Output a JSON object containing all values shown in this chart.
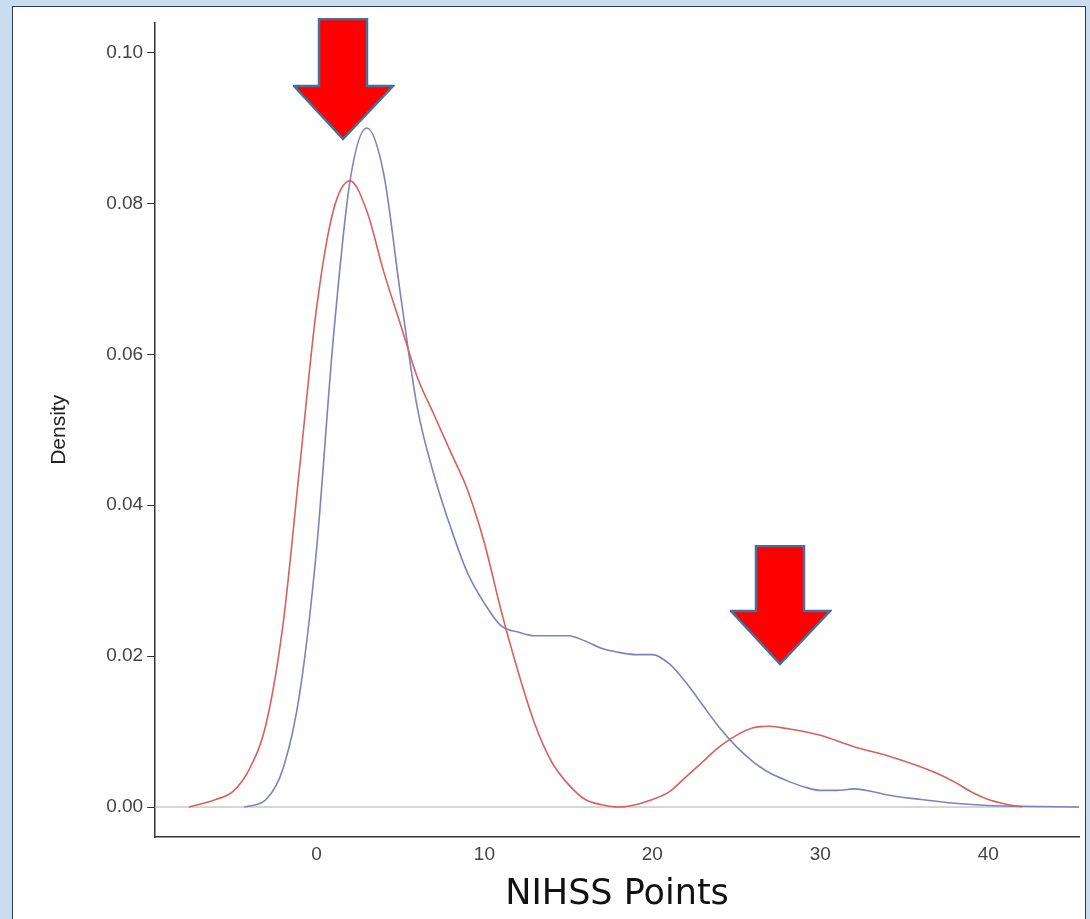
{
  "chart_data": {
    "type": "line",
    "xlabel": "NIHSS Points",
    "ylabel": "Density",
    "xlim": [
      -9.6,
      45.4
    ],
    "xticks": [
      0,
      10,
      20,
      30,
      40
    ],
    "ylim": [
      -0.004,
      0.104
    ],
    "yticks": [
      {
        "value": 0,
        "label": "0.00"
      },
      {
        "value": 0.02,
        "label": "0.02"
      },
      {
        "value": 0.04,
        "label": "0.04"
      },
      {
        "value": 0.06,
        "label": "0.06"
      },
      {
        "value": 0.08,
        "label": "0.08"
      },
      {
        "value": 0.1,
        "label": "0.10"
      }
    ],
    "grid": false,
    "legend": false,
    "marker": "none",
    "line_style": "solid",
    "ref_lines": [
      {
        "axis": "y",
        "value": 0,
        "color": "#c8c8c8"
      }
    ],
    "series": [
      {
        "color": "#d9605a",
        "x": [
          -7.6,
          -6,
          -5,
          -4,
          -3,
          -2,
          -1,
          0,
          1,
          2,
          3,
          4,
          5,
          6,
          7,
          8,
          9,
          10,
          11,
          12,
          13,
          14,
          15,
          16,
          17,
          18,
          19,
          20,
          21,
          22,
          23,
          24,
          25,
          26,
          27,
          28,
          30,
          32,
          34,
          36,
          37,
          38,
          39,
          40,
          41,
          42
        ],
        "values": [
          0,
          0.001,
          0.002,
          0.005,
          0.011,
          0.024,
          0.045,
          0.066,
          0.079,
          0.083,
          0.079,
          0.071,
          0.064,
          0.057,
          0.052,
          0.047,
          0.042,
          0.035,
          0.026,
          0.018,
          0.011,
          0.006,
          0.003,
          0.001,
          0.0003,
          0,
          0.0003,
          0.001,
          0.002,
          0.004,
          0.006,
          0.008,
          0.0095,
          0.0105,
          0.0107,
          0.0104,
          0.0095,
          0.008,
          0.0068,
          0.0053,
          0.0044,
          0.0033,
          0.002,
          0.001,
          0.0004,
          0
        ]
      },
      {
        "color": "#7b83c0",
        "x": [
          -4.3,
          -3,
          -2,
          -1,
          0,
          1,
          2,
          3,
          4,
          5,
          6,
          7,
          8,
          9,
          10,
          11,
          12,
          13,
          14,
          15,
          16,
          17,
          18,
          19,
          20,
          21,
          22,
          23,
          24,
          25,
          26,
          27,
          28,
          29,
          30,
          31,
          32,
          33,
          34,
          36,
          38,
          40,
          42,
          45.4
        ],
        "values": [
          0,
          0.001,
          0.005,
          0.015,
          0.034,
          0.062,
          0.083,
          0.09,
          0.084,
          0.068,
          0.053,
          0.044,
          0.037,
          0.031,
          0.027,
          0.024,
          0.0232,
          0.0227,
          0.0227,
          0.0227,
          0.022,
          0.021,
          0.0205,
          0.0202,
          0.0202,
          0.019,
          0.0165,
          0.0135,
          0.0105,
          0.008,
          0.006,
          0.0045,
          0.0035,
          0.0027,
          0.0022,
          0.0022,
          0.0024,
          0.0021,
          0.0016,
          0.001,
          0.0005,
          0.0002,
          0.0001,
          0
        ]
      }
    ]
  }
}
